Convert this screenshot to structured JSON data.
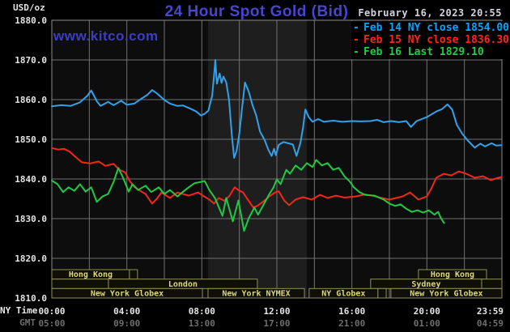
{
  "header": {
    "unit_label": "USD/oz",
    "title": "24 Hour Spot Gold (Bid)",
    "datetime": "February 16, 2023 20:55",
    "watermark": "www.kitco.com"
  },
  "colors": {
    "background": "#000000",
    "plot_background": "#0d0d0d",
    "nymex_band": "#1e1e1e",
    "grid": "#717171",
    "frame": "#8c8c8c",
    "tick_label": "#e4e4e4",
    "gmt_tick_label": "#6e6e6e",
    "session_border": "#8f8f55",
    "session_fill": "#0f0f07",
    "session_label": "#ddd878",
    "title_blue": "#4646d2",
    "feb14_blue": "#31a2ea",
    "feb15_red": "#f32719",
    "feb16_green": "#1fca43",
    "legend_blue": "#00a6ff",
    "legend_red": "#ff2415",
    "legend_green": "#22cc44"
  },
  "legend": {
    "items": [
      {
        "id": "feb14",
        "label": "Feb 14 NY close 1854.00",
        "color": "#00a6ff"
      },
      {
        "id": "feb15",
        "label": "Feb 15 NY close 1836.30",
        "color": "#ff2415"
      },
      {
        "id": "feb16",
        "label": "Feb 16 Last 1829.10",
        "color": "#22cc44"
      }
    ]
  },
  "x_axis": {
    "ny_label": "NY Time",
    "gmt_label": "GMT",
    "ticks": [
      {
        "t": 0,
        "ny": "00:00",
        "gmt": "05:00"
      },
      {
        "t": 4,
        "ny": "04:00",
        "gmt": "09:00"
      },
      {
        "t": 8,
        "ny": "08:00",
        "gmt": "13:00"
      },
      {
        "t": 12,
        "ny": "12:00",
        "gmt": "17:00"
      },
      {
        "t": 16,
        "ny": "16:00",
        "gmt": "21:00"
      },
      {
        "t": 20,
        "ny": "20:00",
        "gmt": "01:00"
      },
      {
        "t": 23.983,
        "ny": "23:59",
        "gmt": "04:59"
      }
    ]
  },
  "sessions": {
    "rows": [
      {
        "boxes": [
          {
            "t1": 0,
            "t2": 4.14,
            "label": "Hong Kong"
          },
          {
            "t1": 4.14,
            "t2": 4.57,
            "label": ""
          },
          {
            "t1": 19.55,
            "t2": 23.18,
            "label": "Hong Kong"
          }
        ]
      },
      {
        "boxes": [
          {
            "t1": 0,
            "t2": 3.02,
            "label": ""
          },
          {
            "t1": 3.02,
            "t2": 10.96,
            "label": "London"
          },
          {
            "t1": 17.0,
            "t2": 22.92,
            "label": "Sydney"
          },
          {
            "t1": 22.92,
            "t2": 24,
            "label": ""
          }
        ]
      },
      {
        "boxes": [
          {
            "t1": 0,
            "t2": 8.03,
            "label": "New York Globex"
          },
          {
            "t1": 8.33,
            "t2": 13.47,
            "label": "New York NYMEX"
          },
          {
            "t1": 13.72,
            "t2": 17.39,
            "label": "NY Globex"
          },
          {
            "t1": 17.39,
            "t2": 17.83,
            "label": ""
          },
          {
            "t1": 18.08,
            "t2": 24,
            "label": "New York Globex"
          }
        ]
      }
    ]
  },
  "chart_data": {
    "type": "line",
    "title": "24 Hour Spot Gold (Bid)",
    "xlabel": "NY Time (00:00-23:59) / GMT (05:00-04:59)",
    "ylabel": "USD/oz",
    "xlim_hours": [
      0,
      24
    ],
    "ylim": [
      1810,
      1880
    ],
    "y_ticks": [
      1880,
      1870,
      1860,
      1850,
      1840,
      1830,
      1820,
      1810
    ],
    "x_gridline_hours": [
      2,
      4,
      6,
      8,
      10,
      12,
      14,
      16,
      18,
      20,
      22
    ],
    "highlight_band_hours": [
      8.33,
      13.6
    ],
    "grid": true,
    "legend_position": "top-right",
    "series": [
      {
        "name": "Feb 14 (NY close 1854.00)",
        "color": "#31a2ea",
        "points": [
          [
            0,
            1858.3
          ],
          [
            0.5,
            1858.6
          ],
          [
            1,
            1858.4
          ],
          [
            1.5,
            1859.3
          ],
          [
            1.9,
            1861
          ],
          [
            2.1,
            1862.3
          ],
          [
            2.4,
            1859.6
          ],
          [
            2.6,
            1858.4
          ],
          [
            3,
            1859.4
          ],
          [
            3.3,
            1858.6
          ],
          [
            3.7,
            1859.7
          ],
          [
            4,
            1858.7
          ],
          [
            4.4,
            1859
          ],
          [
            4.8,
            1860.3
          ],
          [
            5.1,
            1861.2
          ],
          [
            5.35,
            1862.4
          ],
          [
            5.6,
            1861.6
          ],
          [
            6,
            1859.9
          ],
          [
            6.3,
            1859
          ],
          [
            6.7,
            1858.4
          ],
          [
            7,
            1858.5
          ],
          [
            7.4,
            1857.7
          ],
          [
            7.7,
            1857
          ],
          [
            7.95,
            1856
          ],
          [
            8.15,
            1856.4
          ],
          [
            8.35,
            1857.2
          ],
          [
            8.55,
            1861
          ],
          [
            8.65,
            1866
          ],
          [
            8.72,
            1870
          ],
          [
            8.8,
            1864
          ],
          [
            8.95,
            1866.6
          ],
          [
            9.05,
            1864.2
          ],
          [
            9.15,
            1865.8
          ],
          [
            9.3,
            1864.3
          ],
          [
            9.45,
            1860
          ],
          [
            9.6,
            1851
          ],
          [
            9.72,
            1845.3
          ],
          [
            9.85,
            1847
          ],
          [
            10,
            1851.5
          ],
          [
            10.15,
            1858
          ],
          [
            10.3,
            1864.3
          ],
          [
            10.5,
            1862
          ],
          [
            10.7,
            1858.6
          ],
          [
            10.9,
            1856
          ],
          [
            11.1,
            1852
          ],
          [
            11.35,
            1849.8
          ],
          [
            11.55,
            1847.3
          ],
          [
            11.72,
            1845.8
          ],
          [
            11.85,
            1847.6
          ],
          [
            11.95,
            1846
          ],
          [
            12.1,
            1848.6
          ],
          [
            12.35,
            1849.3
          ],
          [
            12.6,
            1849
          ],
          [
            12.85,
            1848.7
          ],
          [
            13.05,
            1845.8
          ],
          [
            13.25,
            1849
          ],
          [
            13.4,
            1853
          ],
          [
            13.52,
            1857.5
          ],
          [
            13.7,
            1855.6
          ],
          [
            13.9,
            1854.4
          ],
          [
            14.2,
            1855.1
          ],
          [
            14.5,
            1854.4
          ],
          [
            15,
            1854.7
          ],
          [
            15.5,
            1854.4
          ],
          [
            16,
            1854.6
          ],
          [
            16.5,
            1854.5
          ],
          [
            17,
            1854.6
          ],
          [
            17.35,
            1854.9
          ],
          [
            17.7,
            1854.3
          ],
          [
            18.1,
            1854.6
          ],
          [
            18.5,
            1854.3
          ],
          [
            18.9,
            1854.6
          ],
          [
            19.15,
            1853.1
          ],
          [
            19.45,
            1854.6
          ],
          [
            20,
            1855.6
          ],
          [
            20.5,
            1857
          ],
          [
            20.8,
            1857.6
          ],
          [
            21.1,
            1858.8
          ],
          [
            21.35,
            1857.5
          ],
          [
            21.6,
            1853.6
          ],
          [
            21.9,
            1851.3
          ],
          [
            22.2,
            1849.6
          ],
          [
            22.55,
            1847.9
          ],
          [
            22.85,
            1848.9
          ],
          [
            23.1,
            1848.2
          ],
          [
            23.45,
            1849
          ],
          [
            23.7,
            1848.4
          ],
          [
            23.98,
            1848.5
          ]
        ]
      },
      {
        "name": "Feb 15 (NY close 1836.30)",
        "color": "#f32719",
        "points": [
          [
            0,
            1847.8
          ],
          [
            0.35,
            1847.4
          ],
          [
            0.65,
            1847.6
          ],
          [
            0.95,
            1846.9
          ],
          [
            1.25,
            1845.6
          ],
          [
            1.6,
            1844.2
          ],
          [
            2.05,
            1843.9
          ],
          [
            2.5,
            1844.4
          ],
          [
            2.85,
            1843.3
          ],
          [
            3.3,
            1843.8
          ],
          [
            3.6,
            1842.3
          ],
          [
            3.9,
            1841.7
          ],
          [
            4.15,
            1839.5
          ],
          [
            4.4,
            1838
          ],
          [
            4.65,
            1837.2
          ],
          [
            5,
            1836.2
          ],
          [
            5.35,
            1833.8
          ],
          [
            5.6,
            1835
          ],
          [
            5.85,
            1836.6
          ],
          [
            6.3,
            1835.2
          ],
          [
            6.7,
            1836.6
          ],
          [
            7.3,
            1835.8
          ],
          [
            7.8,
            1836.6
          ],
          [
            8.05,
            1835.8
          ],
          [
            8.4,
            1834.8
          ],
          [
            8.65,
            1833.8
          ],
          [
            8.9,
            1835.2
          ],
          [
            9.2,
            1834.5
          ],
          [
            9.45,
            1835.6
          ],
          [
            9.75,
            1837.9
          ],
          [
            9.95,
            1837.2
          ],
          [
            10.2,
            1836.6
          ],
          [
            10.45,
            1834.8
          ],
          [
            10.75,
            1832.8
          ],
          [
            10.95,
            1833.2
          ],
          [
            11.25,
            1834.2
          ],
          [
            11.6,
            1835.6
          ],
          [
            11.9,
            1836.6
          ],
          [
            12.1,
            1836.9
          ],
          [
            12.4,
            1834.5
          ],
          [
            12.65,
            1833.4
          ],
          [
            13,
            1834.8
          ],
          [
            13.4,
            1835.4
          ],
          [
            13.85,
            1834.8
          ],
          [
            14.3,
            1836
          ],
          [
            14.7,
            1835.2
          ],
          [
            15.15,
            1835.8
          ],
          [
            15.6,
            1835.3
          ],
          [
            16.2,
            1835.6
          ],
          [
            16.7,
            1836.1
          ],
          [
            17.1,
            1835.8
          ],
          [
            17.6,
            1835.2
          ],
          [
            18,
            1834.8
          ],
          [
            18.7,
            1835.6
          ],
          [
            19.1,
            1836.6
          ],
          [
            19.55,
            1834.8
          ],
          [
            20,
            1835.6
          ],
          [
            20.25,
            1837.7
          ],
          [
            20.5,
            1840.3
          ],
          [
            20.9,
            1841.3
          ],
          [
            21.3,
            1840.9
          ],
          [
            21.7,
            1841.9
          ],
          [
            22.1,
            1841.3
          ],
          [
            22.55,
            1840.3
          ],
          [
            23,
            1840.7
          ],
          [
            23.4,
            1839.7
          ],
          [
            23.8,
            1840.3
          ],
          [
            23.98,
            1840.5
          ]
        ]
      },
      {
        "name": "Feb 16 (Last 1829.10)",
        "color": "#1fca43",
        "points": [
          [
            0,
            1839.6
          ],
          [
            0.3,
            1838.7
          ],
          [
            0.6,
            1836.7
          ],
          [
            0.9,
            1837.9
          ],
          [
            1.2,
            1837
          ],
          [
            1.5,
            1838.7
          ],
          [
            1.8,
            1836.8
          ],
          [
            2.1,
            1837.9
          ],
          [
            2.4,
            1834.2
          ],
          [
            2.7,
            1835.6
          ],
          [
            3,
            1836.2
          ],
          [
            3.3,
            1839.3
          ],
          [
            3.55,
            1842.8
          ],
          [
            3.8,
            1840.3
          ],
          [
            4.1,
            1836.8
          ],
          [
            4.3,
            1838.7
          ],
          [
            4.6,
            1837.2
          ],
          [
            5,
            1838.3
          ],
          [
            5.3,
            1836.7
          ],
          [
            5.7,
            1837.9
          ],
          [
            6,
            1836.2
          ],
          [
            6.3,
            1837.2
          ],
          [
            6.7,
            1835.6
          ],
          [
            7,
            1836.8
          ],
          [
            7.3,
            1837.9
          ],
          [
            7.6,
            1838.9
          ],
          [
            8,
            1839.3
          ],
          [
            8.15,
            1839.5
          ],
          [
            8.4,
            1837.2
          ],
          [
            8.7,
            1835.2
          ],
          [
            9.1,
            1830.7
          ],
          [
            9.3,
            1835.2
          ],
          [
            9.65,
            1829.3
          ],
          [
            9.95,
            1834.6
          ],
          [
            10.25,
            1826.9
          ],
          [
            10.5,
            1830.1
          ],
          [
            10.8,
            1832.8
          ],
          [
            11,
            1831
          ],
          [
            11.3,
            1833.6
          ],
          [
            11.6,
            1836.2
          ],
          [
            11.8,
            1837.7
          ],
          [
            12,
            1839.9
          ],
          [
            12.2,
            1838.7
          ],
          [
            12.5,
            1842.3
          ],
          [
            12.7,
            1841.3
          ],
          [
            13,
            1843.4
          ],
          [
            13.3,
            1842.3
          ],
          [
            13.6,
            1844
          ],
          [
            13.9,
            1843
          ],
          [
            14.1,
            1844.8
          ],
          [
            14.4,
            1843.4
          ],
          [
            14.7,
            1844
          ],
          [
            15,
            1842.3
          ],
          [
            15.3,
            1842.8
          ],
          [
            15.6,
            1840.7
          ],
          [
            15.9,
            1839.3
          ],
          [
            16.1,
            1837.9
          ],
          [
            16.4,
            1836.7
          ],
          [
            16.7,
            1836
          ],
          [
            17.2,
            1835.8
          ],
          [
            17.7,
            1834.8
          ],
          [
            18,
            1833.8
          ],
          [
            18.3,
            1833.2
          ],
          [
            18.6,
            1833.6
          ],
          [
            18.9,
            1832.5
          ],
          [
            19.2,
            1831.7
          ],
          [
            19.5,
            1832.1
          ],
          [
            19.8,
            1831.5
          ],
          [
            20.1,
            1832.1
          ],
          [
            20.4,
            1831
          ],
          [
            20.6,
            1831.7
          ],
          [
            20.75,
            1830.1
          ],
          [
            20.92,
            1828.9
          ]
        ]
      }
    ]
  }
}
